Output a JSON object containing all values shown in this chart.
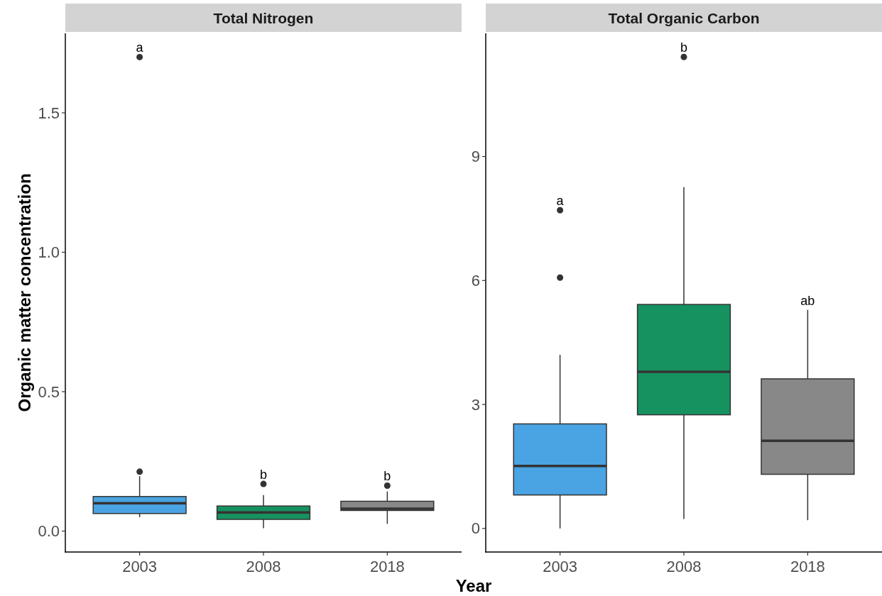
{
  "chart_data": [
    {
      "type": "box",
      "title": "Total Nitrogen",
      "ylabel": "Organic matter concentration",
      "xlabel": "Year",
      "categories": [
        "2003",
        "2008",
        "2018"
      ],
      "colors": [
        "#4aa3e2",
        "#169160",
        "#888888"
      ],
      "boxes": [
        {
          "low": 0.05,
          "q1": 0.063,
          "median": 0.1,
          "q3": 0.124,
          "high": 0.197,
          "outliers": [
            1.7,
            0.213
          ]
        },
        {
          "low": 0.01,
          "q1": 0.042,
          "median": 0.067,
          "q3": 0.09,
          "high": 0.129,
          "outliers": [
            0.169
          ]
        },
        {
          "low": 0.026,
          "q1": 0.074,
          "median": 0.08,
          "q3": 0.107,
          "high": 0.142,
          "outliers": [
            0.163
          ]
        }
      ],
      "ylim": [
        -0.075,
        1.785
      ],
      "yticks": [
        {
          "value": 0,
          "label": "0.0"
        },
        0.5,
        {
          "value": 1,
          "label": "1.0"
        },
        1.5
      ],
      "annotations": [
        "a",
        "b",
        "b"
      ]
    },
    {
      "type": "box",
      "title": "Total Organic Carbon",
      "categories": [
        "2003",
        "2008",
        "2018"
      ],
      "colors": [
        "#4aa3e2",
        "#169160",
        "#888888"
      ],
      "boxes": [
        {
          "low": 0.0,
          "q1": 0.81,
          "median": 1.51,
          "q3": 2.53,
          "high": 4.2,
          "outliers": [
            7.7,
            6.07
          ]
        },
        {
          "low": 0.23,
          "q1": 2.75,
          "median": 3.79,
          "q3": 5.42,
          "high": 8.26,
          "outliers": [
            11.41
          ]
        },
        {
          "low": 0.2,
          "q1": 1.31,
          "median": 2.12,
          "q3": 3.62,
          "high": 5.29
        }
      ],
      "ylim": [
        -0.57,
        11.98
      ],
      "yticks": [
        0,
        3,
        6,
        9
      ],
      "annotations": [
        "a",
        "b",
        "ab"
      ]
    }
  ]
}
